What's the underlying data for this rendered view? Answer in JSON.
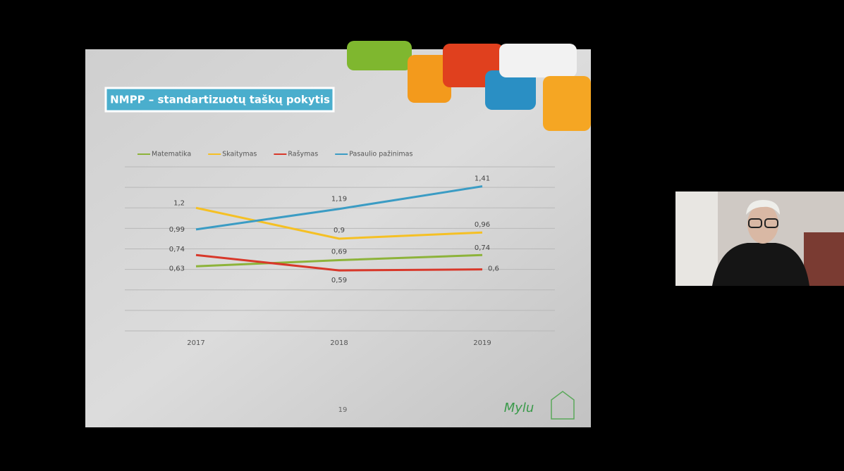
{
  "chart_data": {
    "type": "line",
    "title": "NMPP – standartizuotų taškų pokytis",
    "categories": [
      "2017",
      "2018",
      "2019"
    ],
    "series": [
      {
        "name": "Matematika",
        "color": "#8db33a",
        "values": [
          0.63,
          0.69,
          0.74
        ],
        "value_labels": [
          "0,63",
          "0,69",
          "0,74"
        ]
      },
      {
        "name": "Skaitymas",
        "color": "#f5c024",
        "values": [
          1.2,
          0.9,
          0.96
        ],
        "value_labels": [
          "1,2",
          "0,9",
          "0,96"
        ]
      },
      {
        "name": "Rašymas",
        "color": "#d8382a",
        "values": [
          0.74,
          0.59,
          0.6
        ],
        "value_labels": [
          "0,74",
          "0,59",
          "0,6"
        ]
      },
      {
        "name": "Pasaulio pažinimas",
        "color": "#3b9cc4",
        "values": [
          0.99,
          1.19,
          1.41
        ],
        "value_labels": [
          "0,99",
          "1,19",
          "1,41"
        ]
      }
    ],
    "ylim": [
      0,
      1.6
    ],
    "yticks": [
      0,
      0.2,
      0.4,
      0.6,
      0.8,
      1,
      1.2,
      1.4,
      1.6
    ],
    "grid": true
  },
  "footer": {
    "page": "19",
    "logo": "Mylu"
  }
}
